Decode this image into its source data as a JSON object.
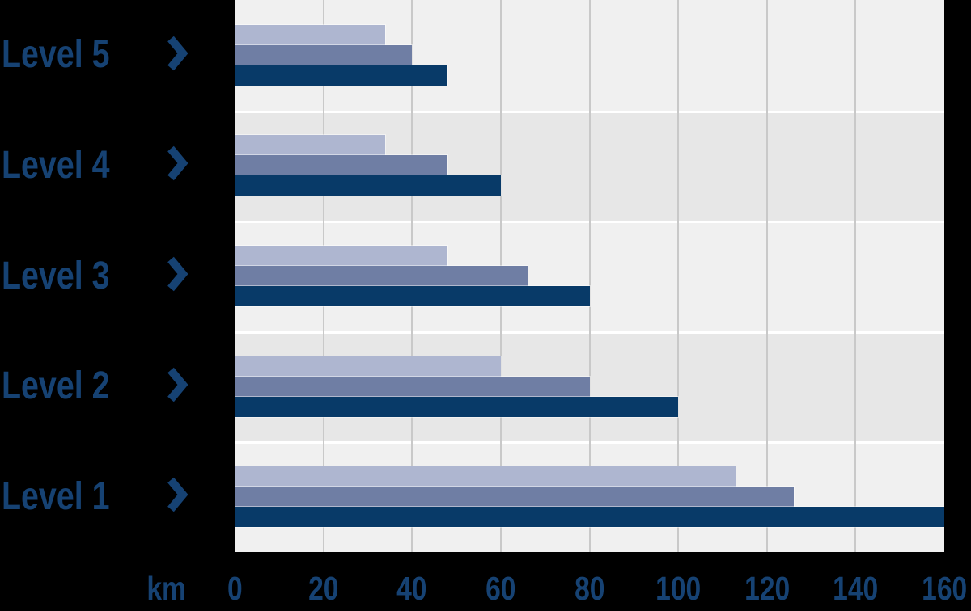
{
  "chart_data": {
    "type": "bar",
    "orientation": "horizontal",
    "unit_label": "km",
    "categories": [
      "Level 5",
      "Level 4",
      "Level 3",
      "Level 2",
      "Level 1"
    ],
    "series": [
      {
        "name": "light",
        "color": "#aeb6d0",
        "values": [
          34,
          34,
          48,
          60,
          113
        ]
      },
      {
        "name": "medium",
        "color": "#6f7ea4",
        "values": [
          40,
          48,
          66,
          80,
          126
        ]
      },
      {
        "name": "dark",
        "color": "#083a68",
        "values": [
          48,
          60,
          80,
          100,
          160
        ]
      }
    ],
    "x_ticks": [
      0,
      20,
      40,
      60,
      80,
      100,
      120,
      140,
      160
    ],
    "xlim": [
      0,
      160
    ],
    "grid": true,
    "legend": "none",
    "title": ""
  },
  "colors": {
    "band_light": "#f0f0f0",
    "band_dark": "#e7e7e7",
    "gridline": "#c9c9c9",
    "band_separator": "#ffffff",
    "text": "#164273",
    "page_background": "#000000"
  },
  "icons": {
    "row_marker": "chevron-right-icon"
  }
}
